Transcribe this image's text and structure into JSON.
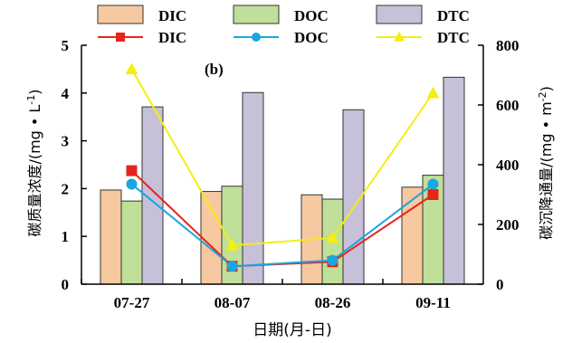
{
  "chart_data": {
    "type": "bar+line",
    "panel_label": "(b)",
    "categories": [
      "07-27",
      "08-07",
      "08-26",
      "09-11"
    ],
    "xlabel": "日期(月-日)",
    "left_axis": {
      "label": "碳质量浓度/(mg • L",
      "label_sup": "-1",
      "label_close": ")",
      "ylim": [
        0,
        5
      ],
      "ticks": [
        0,
        1,
        2,
        3,
        4,
        5
      ]
    },
    "right_axis": {
      "label": "碳沉降通量/(mg • m",
      "label_sup": "-2",
      "label_close": ")",
      "ylim": [
        0,
        800
      ],
      "ticks": [
        0,
        200,
        400,
        600,
        800
      ]
    },
    "bar_series": [
      {
        "name": "DIC",
        "axis": "left",
        "color": "#f6c9a0",
        "values": [
          1.97,
          1.94,
          1.87,
          2.03
        ]
      },
      {
        "name": "DOC",
        "axis": "left",
        "color": "#bfdf9a",
        "values": [
          1.74,
          2.05,
          1.78,
          2.28
        ]
      },
      {
        "name": "DTC",
        "axis": "left",
        "color": "#c7c0d9",
        "values": [
          3.71,
          4.01,
          3.65,
          4.33
        ]
      }
    ],
    "line_series": [
      {
        "name": "DIC",
        "axis": "right",
        "color": "#e8231c",
        "marker": "square",
        "values": [
          380,
          60,
          75,
          300
        ]
      },
      {
        "name": "DOC",
        "axis": "right",
        "color": "#1aa6e0",
        "marker": "circle",
        "values": [
          335,
          60,
          80,
          335
        ]
      },
      {
        "name": "DTC",
        "axis": "right",
        "color": "#f4ee12",
        "marker": "triangle",
        "values": [
          720,
          130,
          155,
          640
        ]
      }
    ],
    "grid": false,
    "legend": "top, two rows (bars above, lines below)"
  }
}
